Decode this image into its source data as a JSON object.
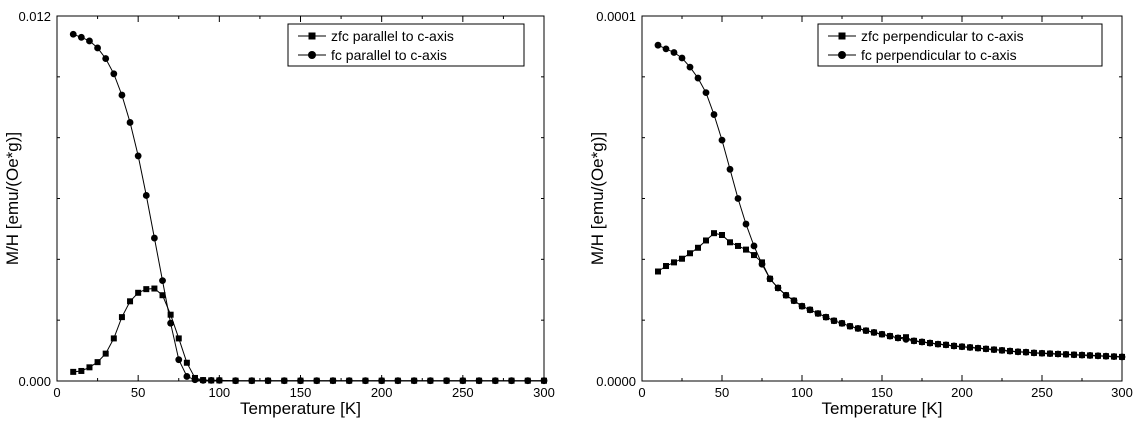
{
  "chart_data": [
    {
      "type": "scatter",
      "title": "",
      "xlabel": "Temperature [K]",
      "ylabel": "M/H [emu/(Oe*g)]",
      "xlim": [
        0,
        300
      ],
      "ylim": [
        0,
        0.012
      ],
      "xticks": [
        "0",
        "50",
        "100",
        "150",
        "200",
        "250",
        "300"
      ],
      "yticks": [
        "0.000",
        "0.012"
      ],
      "legend_position": "top-right",
      "grid": false,
      "series": [
        {
          "name": "zfc parallel to c-axis",
          "marker": "square",
          "x": [
            10,
            15,
            20,
            25,
            30,
            35,
            40,
            45,
            50,
            55,
            60,
            65,
            70,
            75,
            80,
            85,
            90,
            95,
            100,
            110,
            120,
            130,
            140,
            150,
            160,
            170,
            180,
            190,
            200,
            210,
            220,
            230,
            240,
            250,
            260,
            270,
            280,
            290,
            300
          ],
          "y": [
            0.0003,
            0.00033,
            0.00045,
            0.00062,
            0.0009,
            0.0014,
            0.0021,
            0.00262,
            0.0029,
            0.00302,
            0.00304,
            0.00282,
            0.00218,
            0.0014,
            0.0006,
            0.0001,
            3e-05,
            2e-05,
            2e-05,
            1e-05,
            1e-05,
            1e-05,
            1e-05,
            1e-05,
            1e-05,
            1e-05,
            1e-05,
            1e-05,
            1e-05,
            1e-05,
            1e-05,
            1e-05,
            1e-05,
            1e-05,
            1e-05,
            1e-05,
            1e-05,
            1e-05,
            1e-05
          ]
        },
        {
          "name": "fc parallel to c-axis",
          "marker": "circle",
          "x": [
            10,
            15,
            20,
            25,
            30,
            35,
            40,
            45,
            50,
            55,
            60,
            65,
            70,
            75,
            80,
            85,
            90,
            95,
            100,
            110,
            120,
            130,
            140,
            150,
            160,
            170,
            180,
            190,
            200,
            210,
            220,
            230,
            240,
            250,
            260,
            270,
            280,
            290,
            300
          ],
          "y": [
            0.0114,
            0.0113,
            0.01118,
            0.01095,
            0.0106,
            0.0101,
            0.0094,
            0.0085,
            0.0074,
            0.0061,
            0.0047,
            0.0033,
            0.0019,
            0.0007,
            0.00015,
            4e-05,
            2e-05,
            2e-05,
            2e-05,
            1e-05,
            1e-05,
            1e-05,
            1e-05,
            1e-05,
            1e-05,
            1e-05,
            1e-05,
            1e-05,
            1e-05,
            1e-05,
            1e-05,
            1e-05,
            1e-05,
            1e-05,
            1e-05,
            1e-05,
            1e-05,
            1e-05,
            1e-05
          ]
        }
      ]
    },
    {
      "type": "scatter",
      "title": "",
      "xlabel": "Temperature [K]",
      "ylabel": "M/H [emu/(Oe*g)]",
      "xlim": [
        0,
        300
      ],
      "ylim": [
        0,
        0.0001
      ],
      "xticks": [
        "0",
        "50",
        "100",
        "150",
        "200",
        "250",
        "300"
      ],
      "yticks": [
        "0.0000",
        "0.0001"
      ],
      "legend_position": "top-right",
      "grid": false,
      "series": [
        {
          "name": "zfc perpendicular to c-axis",
          "marker": "square",
          "x": [
            10,
            15,
            20,
            25,
            30,
            35,
            40,
            45,
            50,
            55,
            60,
            65,
            70,
            75,
            80,
            85,
            90,
            95,
            100,
            105,
            110,
            115,
            120,
            125,
            130,
            135,
            140,
            145,
            150,
            155,
            160,
            165,
            170,
            175,
            180,
            185,
            190,
            195,
            200,
            205,
            210,
            215,
            220,
            225,
            230,
            235,
            240,
            245,
            250,
            255,
            260,
            265,
            270,
            275,
            280,
            285,
            290,
            295,
            300
          ],
          "y": [
            3e-05,
            3.15e-05,
            3.25e-05,
            3.35e-05,
            3.5e-05,
            3.65e-05,
            3.85e-05,
            4.05e-05,
            4e-05,
            3.8e-05,
            3.7e-05,
            3.6e-05,
            3.45e-05,
            3.25e-05,
            2.8e-05,
            2.55e-05,
            2.35e-05,
            2.2e-05,
            2.05e-05,
            1.95e-05,
            1.85e-05,
            1.75e-05,
            1.65e-05,
            1.58e-05,
            1.5e-05,
            1.44e-05,
            1.38e-05,
            1.33e-05,
            1.28e-05,
            1.23e-05,
            1.18e-05,
            1.2e-05,
            1.1e-05,
            1.07e-05,
            1.04e-05,
            1.01e-05,
            9.9e-06,
            9.6e-06,
            9.4e-06,
            9.2e-06,
            9e-06,
            8.8e-06,
            8.6e-06,
            8.4e-06,
            8.2e-06,
            8e-06,
            7.9e-06,
            7.7e-06,
            7.6e-06,
            7.5e-06,
            7.4e-06,
            7.3e-06,
            7.2e-06,
            7.1e-06,
            7e-06,
            6.9e-06,
            6.8e-06,
            6.7e-06,
            6.6e-06
          ]
        },
        {
          "name": "fc perpendicular to c-axis",
          "marker": "circle",
          "x": [
            10,
            15,
            20,
            25,
            30,
            35,
            40,
            45,
            50,
            55,
            60,
            65,
            70,
            75,
            80,
            85,
            90,
            95,
            100,
            105,
            110,
            115,
            120,
            125,
            130,
            135,
            140,
            145,
            150,
            155,
            160,
            165,
            170,
            175,
            180,
            185,
            190,
            195,
            200,
            205,
            210,
            215,
            220,
            225,
            230,
            235,
            240,
            245,
            250,
            255,
            260,
            265,
            270,
            275,
            280,
            285,
            290,
            295,
            300
          ],
          "y": [
            9.2e-05,
            9.1e-05,
            9e-05,
            8.85e-05,
            8.6e-05,
            8.3e-05,
            7.9e-05,
            7.3e-05,
            6.6e-05,
            5.8e-05,
            5e-05,
            4.3e-05,
            3.7e-05,
            3.2e-05,
            2.8e-05,
            2.55e-05,
            2.35e-05,
            2.2e-05,
            2.05e-05,
            1.95e-05,
            1.85e-05,
            1.75e-05,
            1.65e-05,
            1.58e-05,
            1.5e-05,
            1.44e-05,
            1.38e-05,
            1.33e-05,
            1.28e-05,
            1.23e-05,
            1.18e-05,
            1.14e-05,
            1.1e-05,
            1.07e-05,
            1.04e-05,
            1.01e-05,
            9.9e-06,
            9.6e-06,
            9.4e-06,
            9.2e-06,
            9e-06,
            8.8e-06,
            8.6e-06,
            8.4e-06,
            8.2e-06,
            8e-06,
            7.9e-06,
            7.7e-06,
            7.6e-06,
            7.5e-06,
            7.4e-06,
            7.3e-06,
            7.2e-06,
            7.1e-06,
            7e-06,
            6.9e-06,
            6.8e-06,
            6.7e-06,
            6.6e-06
          ]
        }
      ]
    }
  ]
}
